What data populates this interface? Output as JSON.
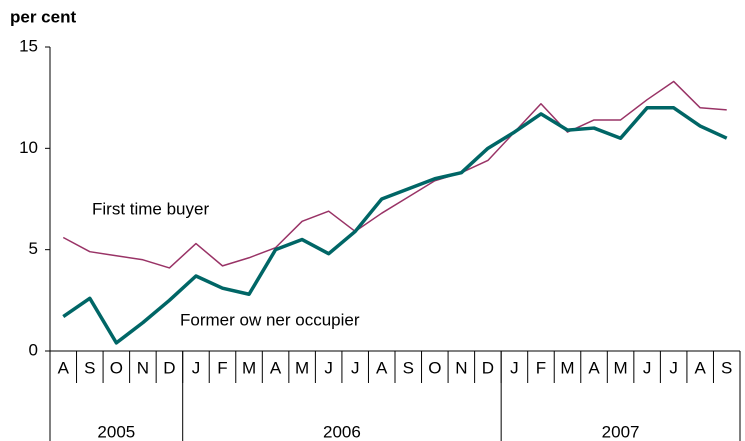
{
  "chart_data": {
    "type": "line",
    "y_label": "per cent",
    "categories": [
      "A",
      "S",
      "O",
      "N",
      "D",
      "J",
      "F",
      "M",
      "A",
      "M",
      "J",
      "J",
      "A",
      "S",
      "O",
      "N",
      "D",
      "J",
      "F",
      "M",
      "A",
      "M",
      "J",
      "J",
      "A",
      "S"
    ],
    "x_groups": [
      {
        "label": "2005",
        "span": 5
      },
      {
        "label": "2006",
        "span": 12
      },
      {
        "label": "2007",
        "span": 9
      }
    ],
    "ylim": [
      0,
      15
    ],
    "yticks": [
      0,
      5,
      10,
      15
    ],
    "series": [
      {
        "name": "First time buyer",
        "color": "#993366",
        "width": 1.5,
        "values": [
          5.6,
          4.9,
          4.7,
          4.5,
          4.1,
          5.3,
          4.2,
          4.6,
          5.1,
          6.4,
          6.9,
          5.9,
          6.8,
          7.6,
          8.4,
          8.8,
          9.4,
          10.8,
          12.2,
          10.8,
          11.4,
          11.4,
          12.4,
          13.3,
          12.0,
          11.9
        ]
      },
      {
        "name": "Former ow ner occupier",
        "color": "#006666",
        "width": 3.5,
        "values": [
          1.7,
          2.6,
          0.4,
          1.4,
          2.5,
          3.7,
          3.1,
          2.8,
          5.0,
          5.5,
          4.8,
          5.9,
          7.5,
          8.0,
          8.5,
          8.8,
          10.0,
          10.8,
          11.7,
          10.9,
          11.0,
          10.5,
          12.0,
          12.0,
          11.1,
          10.5
        ]
      }
    ]
  }
}
